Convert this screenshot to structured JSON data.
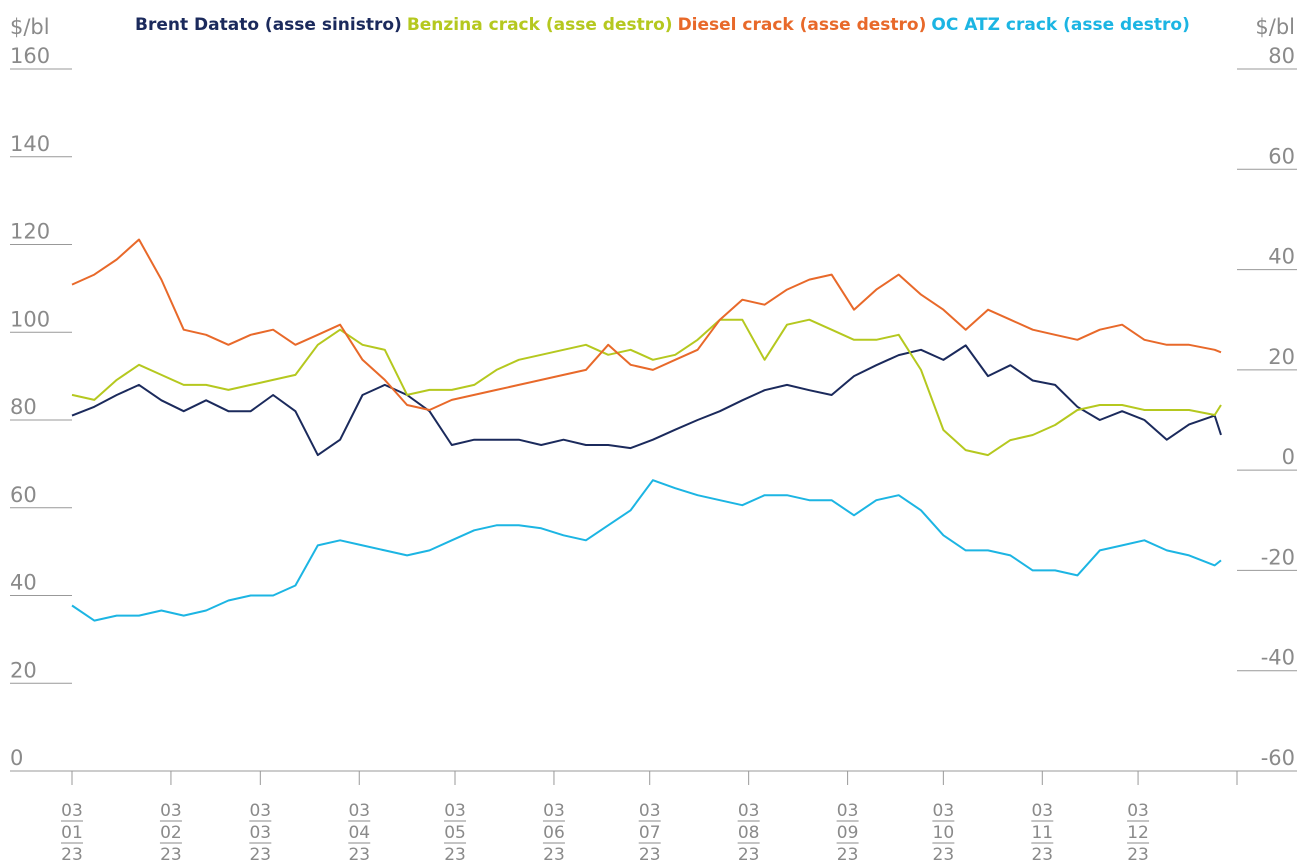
{
  "chart_data": {
    "type": "line",
    "y_label": "$/bl",
    "y2_label": "$/bl",
    "x": [
      "2023-01-03",
      "2023-01-10",
      "2023-01-17",
      "2023-01-24",
      "2023-01-31",
      "2023-02-07",
      "2023-02-14",
      "2023-02-21",
      "2023-02-28",
      "2023-03-07",
      "2023-03-14",
      "2023-03-21",
      "2023-03-28",
      "2023-04-04",
      "2023-04-11",
      "2023-04-18",
      "2023-04-25",
      "2023-05-02",
      "2023-05-09",
      "2023-05-16",
      "2023-05-23",
      "2023-05-30",
      "2023-06-06",
      "2023-06-13",
      "2023-06-20",
      "2023-06-27",
      "2023-07-04",
      "2023-07-11",
      "2023-07-18",
      "2023-07-25",
      "2023-08-01",
      "2023-08-08",
      "2023-08-15",
      "2023-08-22",
      "2023-08-29",
      "2023-09-05",
      "2023-09-12",
      "2023-09-19",
      "2023-09-26",
      "2023-10-03",
      "2023-10-10",
      "2023-10-17",
      "2023-10-24",
      "2023-10-31",
      "2023-11-07",
      "2023-11-14",
      "2023-11-21",
      "2023-11-28",
      "2023-12-05",
      "2023-12-12",
      "2023-12-19",
      "2023-12-27",
      "2023-12-29"
    ],
    "series": [
      {
        "name": "Brent Datato (asse sinistro)",
        "color": "#1b2a5c",
        "axis": "y",
        "values": [
          81,
          83,
          85.7,
          88,
          84.5,
          82,
          84.5,
          82,
          82,
          85.7,
          82,
          72,
          75.5,
          85.7,
          88,
          85.7,
          82,
          74.3,
          75.5,
          75.5,
          75.5,
          74.3,
          75.5,
          74.3,
          74.3,
          73.6,
          75.5,
          77.8,
          80,
          82,
          84.5,
          86.8,
          88,
          86.8,
          85.7,
          90,
          92.5,
          94.8,
          96,
          93.7,
          97,
          90,
          92.5,
          89,
          88,
          83,
          80,
          82,
          80,
          75.5,
          79,
          81,
          76.6
        ]
      },
      {
        "name": "Benzina crack (asse destro)",
        "color": "#b5c81f",
        "axis": "y2",
        "values": [
          15,
          14,
          18,
          21,
          19,
          17,
          17,
          16,
          17,
          18,
          19,
          25,
          28,
          25,
          24,
          15,
          16,
          16,
          17,
          20,
          22,
          23,
          24,
          25,
          23,
          24,
          22,
          23,
          26,
          30,
          30,
          22,
          29,
          30,
          28,
          26,
          26,
          27,
          20,
          8,
          4,
          3,
          6,
          7,
          9,
          12,
          13,
          13,
          12,
          12,
          12,
          11,
          13
        ]
      },
      {
        "name": "Diesel crack (asse destro)",
        "color": "#e8692a",
        "axis": "y2",
        "values": [
          37,
          39,
          42,
          46,
          38,
          28,
          27,
          25,
          27,
          28,
          25,
          27,
          29,
          22,
          18,
          13,
          12,
          14,
          15,
          16,
          17,
          18,
          19,
          20,
          25,
          21,
          20,
          22,
          24,
          30,
          34,
          33,
          36,
          38,
          39,
          32,
          36,
          39,
          35,
          32,
          28,
          32,
          30,
          28,
          27,
          26,
          28,
          29,
          26,
          25,
          25,
          24,
          23.5
        ]
      },
      {
        "name": "OC ATZ crack (asse destro)",
        "color": "#1cb5e3",
        "axis": "y2",
        "values": [
          -27,
          -30,
          -29,
          -29,
          -28,
          -29,
          -28,
          -26,
          -25,
          -25,
          -23,
          -15,
          -14,
          -15,
          -16,
          -17,
          -16,
          -14,
          -12,
          -11,
          -11,
          -11.6,
          -13,
          -14,
          -11,
          -8,
          -2,
          -3.6,
          -5,
          -6,
          -7,
          -5,
          -5,
          -6,
          -6,
          -9,
          -6,
          -5,
          -8,
          -13,
          -16,
          -16,
          -17,
          -20,
          -20,
          -21,
          -16,
          -15,
          -14,
          -16,
          -17,
          -19,
          -18
        ]
      }
    ],
    "xlim": [
      "2023-01-03",
      "2024-01-03"
    ],
    "xticks": [
      {
        "value": "2023-01-03",
        "label": "03/01/23"
      },
      {
        "value": "2023-02-03",
        "label": "03/02/23"
      },
      {
        "value": "2023-03-03",
        "label": "03/03/23"
      },
      {
        "value": "2023-04-03",
        "label": "03/04/23"
      },
      {
        "value": "2023-05-03",
        "label": "03/05/23"
      },
      {
        "value": "2023-06-03",
        "label": "03/06/23"
      },
      {
        "value": "2023-07-03",
        "label": "03/07/23"
      },
      {
        "value": "2023-08-03",
        "label": "03/08/23"
      },
      {
        "value": "2023-09-03",
        "label": "03/09/23"
      },
      {
        "value": "2023-10-03",
        "label": "03/10/23"
      },
      {
        "value": "2023-11-03",
        "label": "03/11/23"
      },
      {
        "value": "2023-12-03",
        "label": "03/12/23"
      }
    ],
    "ylim": [
      0,
      160
    ],
    "yticks": [
      0,
      20,
      40,
      60,
      80,
      100,
      120,
      140,
      160
    ],
    "y2lim": [
      -60,
      80
    ],
    "y2ticks": [
      -60,
      -40,
      -20,
      0,
      20,
      40,
      60,
      80
    ],
    "legend": "top"
  }
}
